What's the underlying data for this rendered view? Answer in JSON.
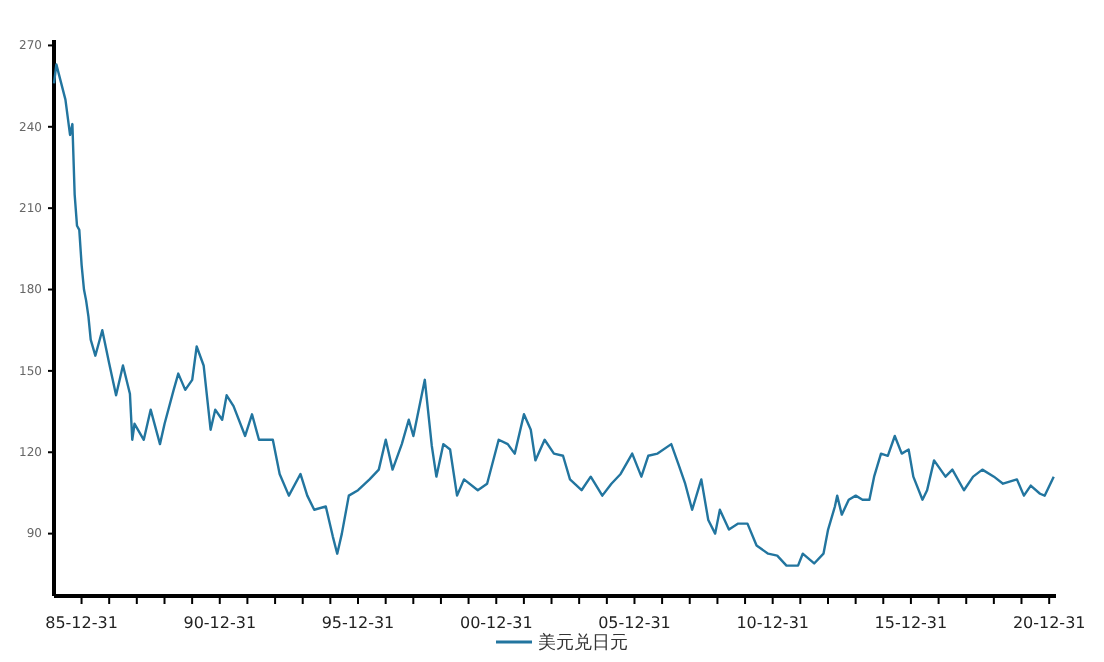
{
  "chart_data": {
    "type": "line",
    "xlim": [
      "1985-01-01",
      "2021-03-31"
    ],
    "ylim": [
      67,
      272
    ],
    "yticks": [
      90,
      120,
      150,
      180,
      210,
      240,
      270
    ],
    "xticks": [
      {
        "value": "1985-12-31",
        "label": "85-12-31"
      },
      {
        "value": "1986-12-31",
        "label": null
      },
      {
        "value": "1987-12-31",
        "label": null
      },
      {
        "value": "1988-12-31",
        "label": null
      },
      {
        "value": "1989-12-31",
        "label": null
      },
      {
        "value": "1990-12-31",
        "label": "90-12-31"
      },
      {
        "value": "1991-12-31",
        "label": null
      },
      {
        "value": "1992-12-31",
        "label": null
      },
      {
        "value": "1993-12-31",
        "label": null
      },
      {
        "value": "1994-12-31",
        "label": null
      },
      {
        "value": "1995-12-31",
        "label": "95-12-31"
      },
      {
        "value": "1996-12-31",
        "label": null
      },
      {
        "value": "1997-12-31",
        "label": null
      },
      {
        "value": "1998-12-31",
        "label": null
      },
      {
        "value": "1999-12-31",
        "label": null
      },
      {
        "value": "2000-12-31",
        "label": "00-12-31"
      },
      {
        "value": "2001-12-31",
        "label": null
      },
      {
        "value": "2002-12-31",
        "label": null
      },
      {
        "value": "2003-12-31",
        "label": null
      },
      {
        "value": "2004-12-31",
        "label": null
      },
      {
        "value": "2005-12-31",
        "label": "05-12-31"
      },
      {
        "value": "2006-12-31",
        "label": null
      },
      {
        "value": "2007-12-31",
        "label": null
      },
      {
        "value": "2008-12-31",
        "label": null
      },
      {
        "value": "2009-12-31",
        "label": null
      },
      {
        "value": "2010-12-31",
        "label": "10-12-31"
      },
      {
        "value": "2011-12-31",
        "label": null
      },
      {
        "value": "2012-12-31",
        "label": null
      },
      {
        "value": "2013-12-31",
        "label": null
      },
      {
        "value": "2014-12-31",
        "label": null
      },
      {
        "value": "2015-12-31",
        "label": "15-12-31"
      },
      {
        "value": "2016-12-31",
        "label": null
      },
      {
        "value": "2017-12-31",
        "label": null
      },
      {
        "value": "2018-12-31",
        "label": null
      },
      {
        "value": "2019-12-31",
        "label": null
      },
      {
        "value": "2020-12-31",
        "label": "20-12-31"
      }
    ],
    "x": [
      "1985-01",
      "1985-02",
      "1985-06",
      "1985-08",
      "1985-09",
      "1985-10",
      "1985-11",
      "1985-12",
      "1986-01",
      "1986-02",
      "1986-03",
      "1986-04",
      "1986-05",
      "1986-07",
      "1986-10",
      "1987-01",
      "1987-04",
      "1987-07",
      "1987-10",
      "1987-11",
      "1987-12",
      "1988-04",
      "1988-07",
      "1988-11",
      "1989-01",
      "1989-05",
      "1989-07",
      "1989-10",
      "1990-01",
      "1990-03",
      "1990-06",
      "1990-09",
      "1990-11",
      "1991-02",
      "1991-04",
      "1991-07",
      "1991-12",
      "1992-03",
      "1992-06",
      "1992-12",
      "1993-03",
      "1993-07",
      "1993-12",
      "1994-03",
      "1994-06",
      "1994-11",
      "1995-02",
      "1995-04",
      "1995-06",
      "1995-09",
      "1996-01",
      "1996-06",
      "1996-10",
      "1997-01",
      "1997-04",
      "1997-08",
      "1997-11",
      "1998-01",
      "1998-06",
      "1998-09",
      "1998-11",
      "1999-02",
      "1999-05",
      "1999-08",
      "1999-11",
      "2000-05",
      "2000-09",
      "2001-02",
      "2001-06",
      "2001-09",
      "2002-01",
      "2002-04",
      "2002-06",
      "2002-10",
      "2003-02",
      "2003-06",
      "2003-09",
      "2004-02",
      "2004-06",
      "2004-11",
      "2005-03",
      "2005-07",
      "2005-12",
      "2006-04",
      "2006-07",
      "2006-11",
      "2007-05",
      "2007-08",
      "2007-11",
      "2008-02",
      "2008-06",
      "2008-09",
      "2008-12",
      "2009-02",
      "2009-06",
      "2009-10",
      "2010-02",
      "2010-06",
      "2010-11",
      "2011-03",
      "2011-07",
      "2011-12",
      "2012-02",
      "2012-07",
      "2012-11",
      "2013-01",
      "2013-04",
      "2013-05",
      "2013-07",
      "2013-10",
      "2014-01",
      "2014-04",
      "2014-07",
      "2014-09",
      "2014-12",
      "2015-03",
      "2015-06",
      "2015-09",
      "2015-12",
      "2016-02",
      "2016-06",
      "2016-08",
      "2016-11",
      "2017-04",
      "2017-07",
      "2017-12",
      "2018-04",
      "2018-08",
      "2019-01",
      "2019-05",
      "2019-11",
      "2020-02",
      "2020-05",
      "2020-09",
      "2020-11",
      "2021-03"
    ],
    "series": [
      {
        "name": "美元兑日元",
        "color": "#22759f",
        "values": [
          256,
          263,
          250,
          237,
          241,
          215,
          203.5,
          202,
          189,
          180,
          176,
          170,
          161.5,
          155.6,
          165,
          152.6,
          141,
          152,
          141.6,
          124.6,
          130.5,
          124.6,
          135.7,
          123,
          130.5,
          143,
          149,
          143,
          146.7,
          159,
          152,
          128.3,
          135.7,
          132,
          141,
          137,
          126,
          134,
          124.6,
          124.6,
          112,
          104,
          112,
          104,
          98.8,
          100,
          89,
          82.6,
          90,
          104,
          106,
          110,
          113.6,
          124.6,
          113.6,
          123,
          132,
          126,
          146.7,
          122.4,
          111,
          123,
          121,
          104,
          110,
          106,
          108.4,
          124.6,
          123,
          119.5,
          134,
          128.3,
          117,
          124.6,
          119.5,
          118.7,
          110,
          106,
          111,
          104,
          108.4,
          112,
          119.5,
          111,
          118.7,
          119.5,
          123,
          115.8,
          108.4,
          98.8,
          110,
          95,
          90,
          98.8,
          91.5,
          93.7,
          93.7,
          85.6,
          82.6,
          81.9,
          78.2,
          78.2,
          82.6,
          79,
          82.6,
          91.5,
          100,
          104,
          97,
          102.5,
          104,
          102.5,
          102.5,
          111,
          119.5,
          118.7,
          126,
          119.5,
          121,
          111,
          102.5,
          106,
          117,
          111,
          113.6,
          106,
          111,
          113.6,
          111,
          108.4,
          110,
          104,
          107.7,
          104.7,
          104,
          111
        ]
      }
    ],
    "legend": "bottom",
    "marker": "none",
    "line_style": "solid",
    "grid": false
  }
}
